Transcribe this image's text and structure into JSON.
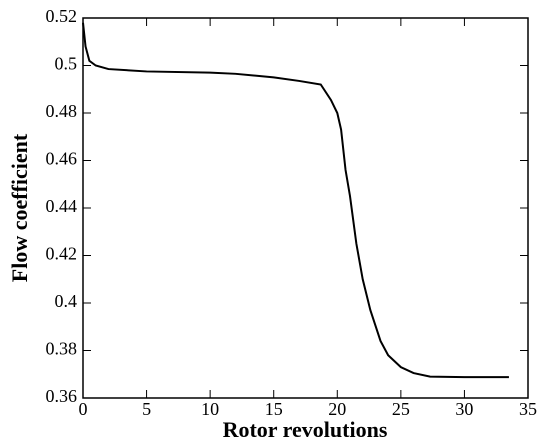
{
  "chart_data": {
    "type": "line",
    "x_label": "Rotor revolutions",
    "y_label": "Flow coefficient",
    "xlim": [
      0,
      35
    ],
    "xticks": [
      0,
      5,
      10,
      15,
      20,
      25,
      30,
      35
    ],
    "ylim": [
      0.36,
      0.52
    ],
    "yticks": [
      0.36,
      0.38,
      0.4,
      0.42,
      0.44,
      0.46,
      0.48,
      0.5,
      0.52
    ],
    "series": [
      {
        "color": "#000000",
        "x": [
          0,
          0.2,
          0.5,
          1,
          2,
          5,
          10,
          12,
          15,
          17,
          18.7,
          19.5,
          20,
          20.3,
          20.65,
          21,
          21.5,
          22,
          22.6,
          23.4,
          24,
          25,
          26,
          27.3,
          30,
          33.5
        ],
        "values": [
          0.518,
          0.508,
          0.502,
          0.5,
          0.4985,
          0.4975,
          0.497,
          0.4965,
          0.495,
          0.4935,
          0.492,
          0.4855,
          0.48,
          0.473,
          0.456,
          0.445,
          0.425,
          0.41,
          0.397,
          0.384,
          0.378,
          0.373,
          0.3705,
          0.369,
          0.3688,
          0.3688
        ]
      }
    ]
  }
}
